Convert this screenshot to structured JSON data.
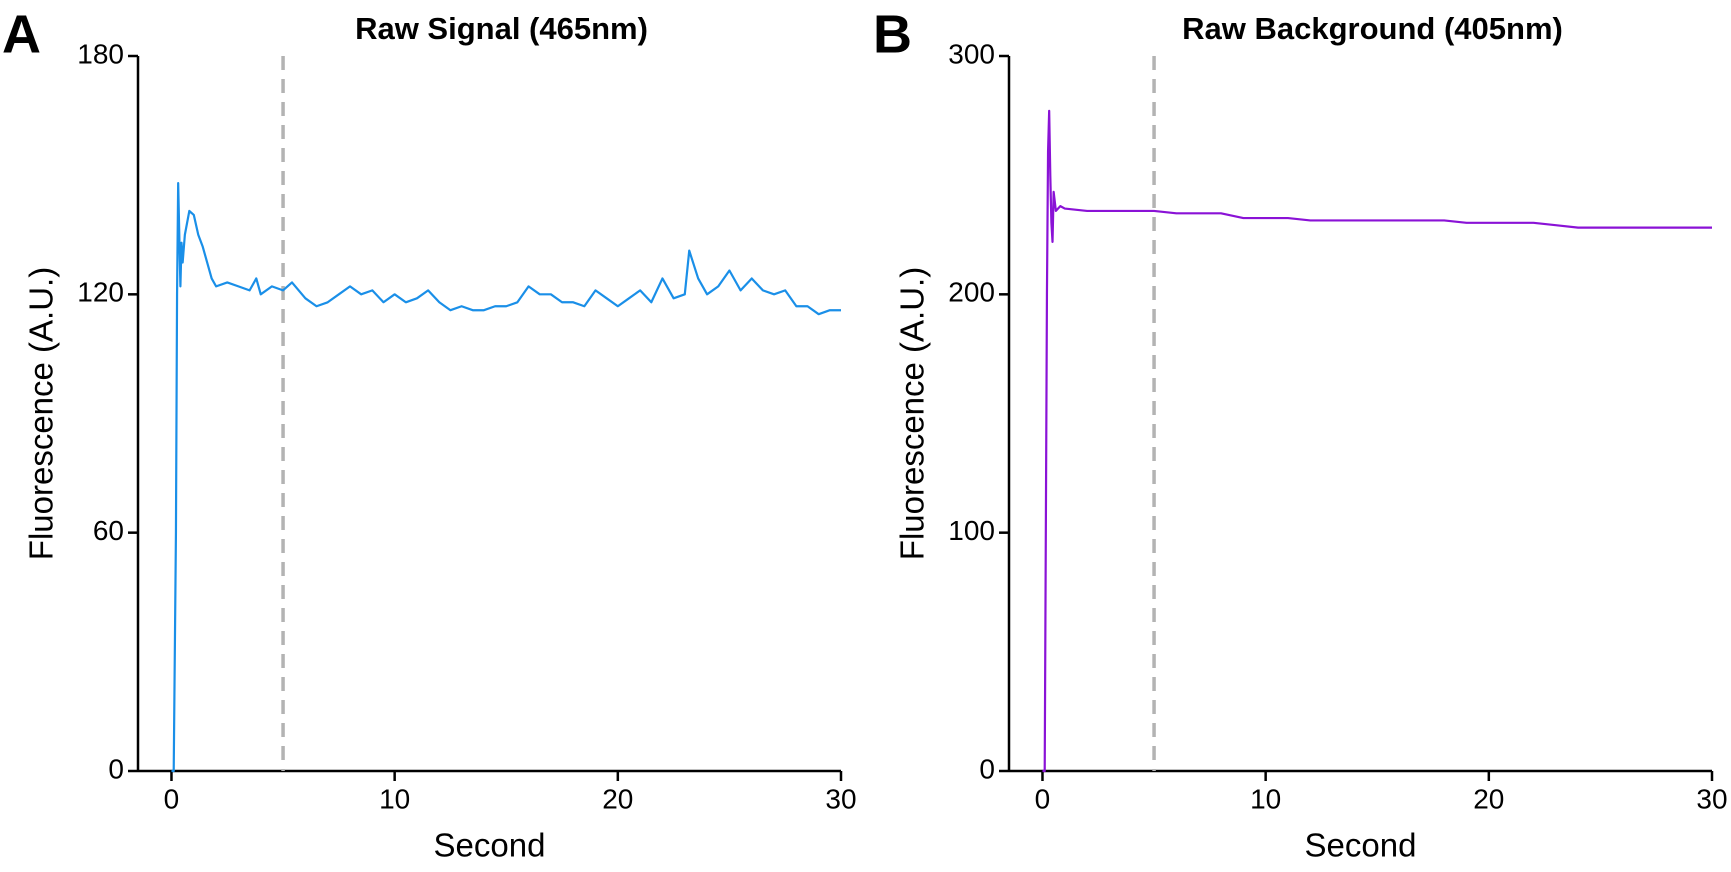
{
  "chart_data": [
    {
      "type": "line",
      "panel_label": "A",
      "title": "Raw Signal (465nm)",
      "xlabel": "Second",
      "ylabel": "Fluorescence (A.U.)",
      "xlim": [
        -1.5,
        30
      ],
      "xticks": [
        0,
        10,
        20,
        30
      ],
      "ylim": [
        0,
        180
      ],
      "yticks": [
        0,
        60,
        120,
        180
      ],
      "vline": 5,
      "color": "#1a8fe8",
      "x": [
        0,
        0.1,
        0.2,
        0.25,
        0.3,
        0.4,
        0.45,
        0.5,
        0.6,
        0.8,
        1.0,
        1.2,
        1.4,
        1.6,
        1.8,
        2.0,
        2.5,
        3,
        3.5,
        3.8,
        4,
        4.5,
        5,
        5.4,
        6,
        6.5,
        7,
        7.5,
        8,
        8.5,
        9,
        9.5,
        10,
        10.5,
        11,
        11.5,
        12,
        12.5,
        13,
        13.5,
        14,
        14.5,
        15,
        15.5,
        16,
        16.5,
        17,
        17.5,
        18,
        18.5,
        19,
        19.5,
        20,
        20.5,
        21,
        21.5,
        22,
        22.5,
        23,
        23.2,
        23.6,
        24,
        24.5,
        25,
        25.5,
        26,
        26.5,
        27,
        27.5,
        28,
        28.5,
        29,
        29.5,
        30
      ],
      "values": [
        0,
        0,
        60,
        120,
        148,
        122,
        133,
        128,
        135,
        141,
        140,
        135,
        132,
        128,
        124,
        122,
        123,
        122,
        121,
        124,
        120,
        122,
        121,
        123,
        119,
        117,
        118,
        120,
        122,
        120,
        121,
        118,
        120,
        118,
        119,
        121,
        118,
        116,
        117,
        116,
        116,
        117,
        117,
        118,
        122,
        120,
        120,
        118,
        118,
        117,
        121,
        119,
        117,
        119,
        121,
        118,
        124,
        119,
        120,
        131,
        124,
        120,
        122,
        126,
        121,
        124,
        121,
        120,
        121,
        117,
        117,
        115,
        116,
        116
      ]
    },
    {
      "type": "line",
      "panel_label": "B",
      "title": "Raw Background (405nm)",
      "xlabel": "Second",
      "ylabel": "Fluorescence (A.U.)",
      "xlim": [
        -1.5,
        30
      ],
      "xticks": [
        0,
        10,
        20,
        30
      ],
      "ylim": [
        0,
        300
      ],
      "yticks": [
        0,
        100,
        200,
        300
      ],
      "vline": 5,
      "color": "#8a12d6",
      "x": [
        0,
        0.1,
        0.2,
        0.25,
        0.3,
        0.35,
        0.4,
        0.45,
        0.5,
        0.6,
        0.8,
        1,
        2,
        3,
        4,
        5,
        6,
        7,
        8,
        9,
        10,
        11,
        12,
        13,
        14,
        15,
        16,
        17,
        18,
        19,
        20,
        21,
        22,
        23,
        24,
        25,
        26,
        27,
        28,
        29,
        30
      ],
      "values": [
        0,
        0,
        200,
        260,
        277,
        250,
        230,
        222,
        243,
        235,
        237,
        236,
        235,
        235,
        235,
        235,
        234,
        234,
        234,
        232,
        232,
        232,
        231,
        231,
        231,
        231,
        231,
        231,
        231,
        230,
        230,
        230,
        230,
        229,
        228,
        228,
        228,
        228,
        228,
        228,
        228
      ]
    }
  ]
}
